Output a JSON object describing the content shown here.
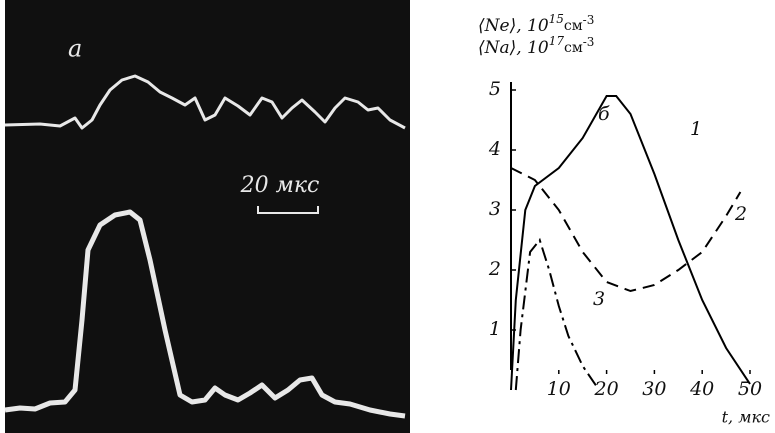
{
  "oscillogram": {
    "label": "а",
    "scale_label": "20 мкс"
  },
  "chart_data": {
    "type": "line",
    "panel_label": "б",
    "y_label": [
      {
        "base": "⟨Nе⟩, 10",
        "exp": "15",
        "unit": "см",
        "unit_exp": "-3"
      },
      {
        "base": "⟨Nа⟩, 10",
        "exp": "17",
        "unit": "см",
        "unit_exp": "-3"
      }
    ],
    "x_label": "t, мкс",
    "xlim": [
      0,
      50
    ],
    "xticks": [
      10,
      20,
      30,
      40,
      50
    ],
    "ylim": [
      0,
      5
    ],
    "yticks": [
      1,
      2,
      3,
      4,
      5
    ],
    "series": [
      {
        "name": "1",
        "color": "#000000",
        "dash": "solid",
        "x": [
          0,
          1,
          3,
          5,
          10,
          15,
          20,
          22,
          25,
          30,
          35,
          40,
          45,
          50
        ],
        "values": [
          0,
          1.5,
          3,
          3.4,
          3.7,
          4.2,
          4.9,
          4.9,
          4.6,
          3.6,
          2.5,
          1.5,
          0.7,
          0.1
        ]
      },
      {
        "name": "2",
        "color": "#000000",
        "dash": "dashed",
        "x": [
          0,
          5,
          10,
          15,
          20,
          25,
          30,
          35,
          40,
          45,
          48
        ],
        "values": [
          3.7,
          3.5,
          3.0,
          2.3,
          1.8,
          1.65,
          1.75,
          2.0,
          2.3,
          2.9,
          3.3
        ]
      },
      {
        "name": "3",
        "color": "#000000",
        "dash": "dashdot",
        "x": [
          1,
          2,
          4,
          6,
          8,
          10,
          12,
          15,
          18
        ],
        "values": [
          0,
          1,
          2.3,
          2.5,
          2.0,
          1.4,
          0.9,
          0.4,
          0.05
        ]
      }
    ]
  }
}
